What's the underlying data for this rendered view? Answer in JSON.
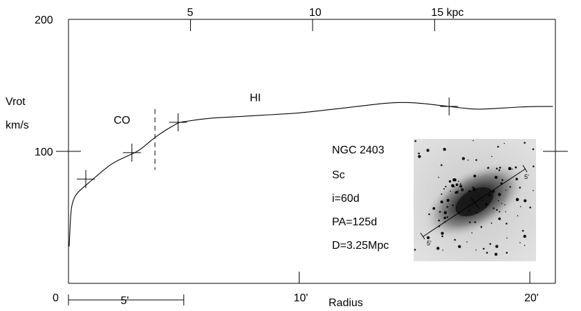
{
  "chart_data": {
    "type": "line",
    "title": "",
    "xlabel": "Radius",
    "ylabel_line1": "Vrot",
    "ylabel_line2": "km/s",
    "xlim": [
      0,
      21
    ],
    "ylim": [
      0,
      200
    ],
    "x_unit": "arcmin",
    "y_unit": "km/s",
    "y_ticks": [
      {
        "value": 0,
        "label": "0"
      },
      {
        "value": 100,
        "label": "100"
      },
      {
        "value": 200,
        "label": "200"
      }
    ],
    "x_bottom_ticks": [
      {
        "value": 10,
        "label": "10'"
      },
      {
        "value": 20,
        "label": "20'"
      }
    ],
    "x_top_ticks_kpc": [
      {
        "value": 5,
        "label": "5"
      },
      {
        "value": 10,
        "label": "10"
      },
      {
        "value": 15,
        "label": "15 kpc"
      }
    ],
    "kpc_per_arcmin": 0.945,
    "scale_bar": {
      "from": 0,
      "to": 5,
      "label": "5'"
    },
    "series": [
      {
        "x": [
          0.03,
          0.1,
          0.2,
          0.35,
          0.6,
          0.8,
          1.2,
          1.6,
          2.0,
          2.5,
          3.0,
          3.3,
          3.7,
          4.2,
          4.6,
          4.8,
          5.2,
          6,
          7,
          8,
          9,
          10,
          11,
          12,
          13,
          14,
          15,
          16,
          16.5,
          17,
          17.5,
          18,
          19,
          20,
          21
        ],
        "y": [
          28,
          55,
          63,
          68,
          72,
          75,
          81,
          87,
          92,
          96,
          100,
          104,
          110,
          116,
          120,
          122,
          123,
          125,
          126,
          127,
          128,
          129,
          131,
          133,
          135,
          137,
          137,
          135,
          134,
          133,
          132,
          132,
          133,
          134,
          134
        ]
      }
    ],
    "data_markers": [
      {
        "x": 0.75,
        "y": 79
      },
      {
        "x": 2.75,
        "y": 99
      },
      {
        "x": 4.75,
        "y": 122
      },
      {
        "x": 16.5,
        "y": 134
      }
    ],
    "boundary": {
      "x": 3.75,
      "y_from": 86,
      "y_to": 132
    },
    "annotations": [
      {
        "text": "CO",
        "x": 2.2,
        "y": 121
      },
      {
        "text": "HI",
        "x": 8.1,
        "y": 138
      }
    ],
    "info": {
      "name": "NGC 2403",
      "type": "Sc",
      "inclination": "i=60d",
      "pa": "PA=125d",
      "distance": "D=3.25Mpc"
    },
    "galaxy_image": {
      "axis_tick_label": "5'"
    }
  }
}
